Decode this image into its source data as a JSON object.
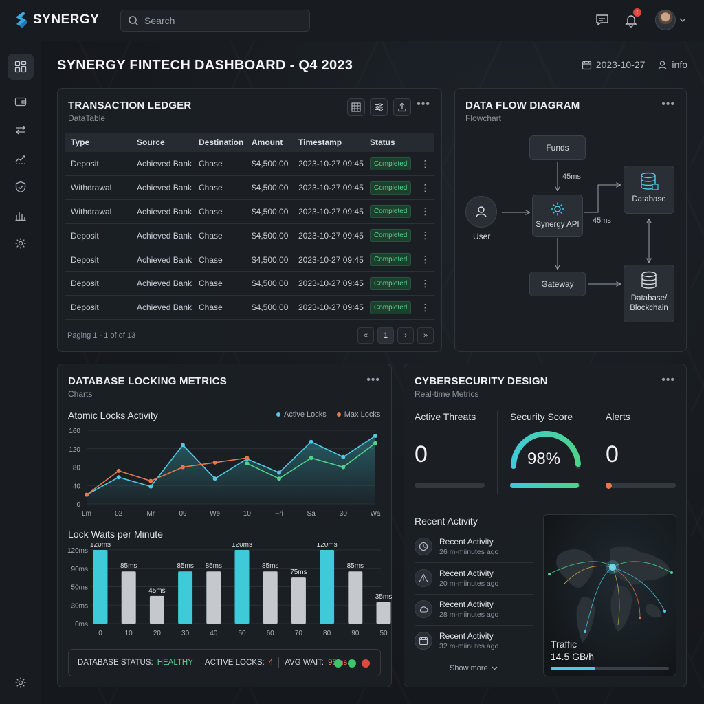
{
  "app": {
    "name": "SYNERGY",
    "search_placeholder": "Search",
    "notification_count": "!",
    "page_title": "SYNERGY FINTECH DASHBOARD - Q4 2023",
    "date": "2023-10-27",
    "user_label": "info"
  },
  "ledger": {
    "title": "TRANSACTION LEDGER",
    "subtitle": "DataTable",
    "columns": [
      "Type",
      "Source",
      "Destination",
      "Amount",
      "Timestamp",
      "Status"
    ],
    "rows": [
      [
        "Deposit",
        "Achieved Bank",
        "Chase",
        "$4,500.00",
        "2023-10-27 09:45",
        "Completed"
      ],
      [
        "Withdrawal",
        "Achieved Bank",
        "Chase",
        "$4,500.00",
        "2023-10-27 09:45",
        "Completed"
      ],
      [
        "Withdrawal",
        "Achieved Bank",
        "Chase",
        "$4,500.00",
        "2023-10-27 09:45",
        "Completed"
      ],
      [
        "Deposit",
        "Achieved Bank",
        "Chase",
        "$4,500.00",
        "2023-10-27 09:45",
        "Completed"
      ],
      [
        "Deposit",
        "Achieved Bank",
        "Chase",
        "$4,500.00",
        "2023-10-27 09:45",
        "Completed"
      ],
      [
        "Deposit",
        "Achieved Bank",
        "Chase",
        "$4,500.00",
        "2023-10-27 09:45",
        "Completed"
      ],
      [
        "Deposit",
        "Achieved Bank",
        "Chase",
        "$4,500.00",
        "2023-10-27 09:45",
        "Completed"
      ]
    ],
    "paging_text": "Paging 1 - 1 of of 13",
    "page_first": "«",
    "page_current": "1",
    "page_next": "›",
    "page_last": "»"
  },
  "flow": {
    "title": "DATA FLOW DIAGRAM",
    "subtitle": "Flowchart",
    "nodes": {
      "funds": "Funds",
      "user": "User",
      "api": "Synergy API",
      "database": "Database",
      "gateway": "Gateway",
      "blockchain_line1": "Database/",
      "blockchain_line2": "Blockchain"
    },
    "label_funds_api": "45ms",
    "label_api_db": "45ms"
  },
  "locking": {
    "title": "DATABASE LOCKING METRICS",
    "subtitle": "Charts",
    "status_label": "DATABASE STATUS:",
    "status_value": "HEALTHY",
    "locks_label": "ACTIVE LOCKS:",
    "locks_value": "4",
    "wait_label": "AVG WAIT:",
    "wait_value": "95ms",
    "status_colors": [
      "#3ec46d",
      "#3ec46d",
      "#e0483e"
    ]
  },
  "chart_data": [
    {
      "type": "line",
      "title": "Atomic Locks Activity",
      "categories": [
        "Lm",
        "02",
        "Mr",
        "09",
        "We",
        "10",
        "Fri",
        "Sa",
        "30",
        "Wa"
      ],
      "ylim": [
        0,
        160
      ],
      "yticks": [
        0,
        40,
        80,
        120,
        160
      ],
      "legend_position": "top-right",
      "series": [
        {
          "name": "Active Locks",
          "color": "#4fc9e6",
          "values": [
            20,
            58,
            38,
            128,
            55,
            98,
            68,
            135,
            102,
            148
          ]
        },
        {
          "name": "Max Locks",
          "color": "#e8774a",
          "values": [
            20,
            72,
            50,
            80,
            90,
            100,
            null,
            null,
            null,
            null
          ]
        },
        {
          "name": "",
          "color": "#4fd38a",
          "values": [
            null,
            null,
            null,
            null,
            null,
            88,
            55,
            100,
            80,
            132
          ]
        }
      ]
    },
    {
      "type": "bar",
      "title": "Lock Waits per Minute",
      "categories": [
        "0",
        "10",
        "20",
        "30",
        "40",
        "50",
        "60",
        "70",
        "80",
        "90",
        "50"
      ],
      "values": [
        120,
        85,
        45,
        85,
        85,
        120,
        85,
        75,
        120,
        85,
        35
      ],
      "value_labels": [
        "120ms",
        "85ms",
        "45ms",
        "85ms",
        "85ms",
        "120ms",
        "85ms",
        "75ms",
        "120ms",
        "85ms",
        "35ms"
      ],
      "colors": [
        "#3fcad9",
        "#c5c9ce",
        "#c5c9ce",
        "#3fcad9",
        "#c5c9ce",
        "#3fcad9",
        "#c5c9ce",
        "#c5c9ce",
        "#3fcad9",
        "#c5c9ce",
        "#c5c9ce"
      ],
      "ylim": [
        0,
        120
      ],
      "ytick_labels": [
        "0ms",
        "30ms",
        "50ms",
        "90ms",
        "120ms"
      ]
    }
  ],
  "cyber": {
    "title": "CYBERSECURITY DESIGN",
    "subtitle": "Real-time Metrics",
    "active_threats_label": "Active Threats",
    "active_threats_value": "0",
    "security_score_label": "Security Score",
    "security_score_value": "98%",
    "security_score_fraction": 0.98,
    "alerts_label": "Alerts",
    "alerts_value": "0",
    "recent_activity_title": "Recent Activity",
    "activities": [
      {
        "icon": "clock-icon",
        "title": "Recent Activity",
        "time": "26 m-miinutes ago"
      },
      {
        "icon": "warning-icon",
        "title": "Recent Activity",
        "time": "20 m-miinutes ago"
      },
      {
        "icon": "cloud-icon",
        "title": "Recent Activity",
        "time": "28 m-miinutes ago"
      },
      {
        "icon": "calendar-icon",
        "title": "Recent Activity",
        "time": "32 m-miinutes ago"
      }
    ],
    "show_more": "Show more",
    "traffic_label": "Traffic",
    "traffic_value": "14.5 GB/h",
    "traffic_fraction": 0.38
  }
}
